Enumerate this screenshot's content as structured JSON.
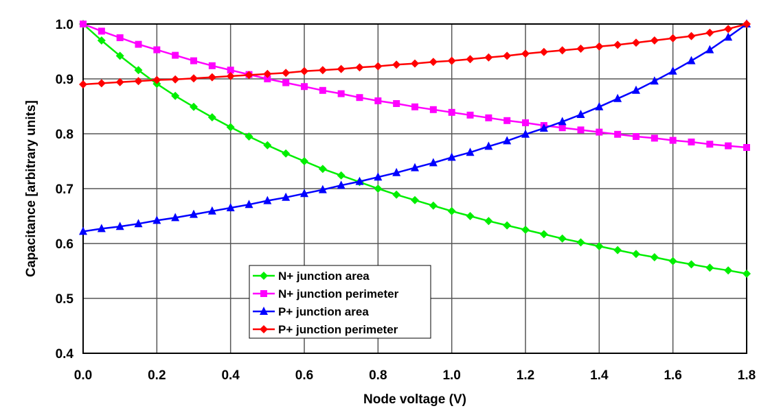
{
  "chart_data": {
    "type": "line",
    "title": "",
    "xlabel": "Node voltage (V)",
    "ylabel": "Capacitance [arbitrary units]",
    "xlim": [
      0,
      1.8
    ],
    "ylim": [
      0.4,
      1.0
    ],
    "xticks": [
      "0.0",
      "0.2",
      "0.4",
      "0.6",
      "0.8",
      "1.0",
      "1.2",
      "1.4",
      "1.6",
      "1.8"
    ],
    "yticks": [
      "0.4",
      "0.5",
      "0.6",
      "0.7",
      "0.8",
      "0.9",
      "1.0"
    ],
    "grid": true,
    "legend_position": "lower-left-center",
    "x": [
      0,
      0.05,
      0.1,
      0.15,
      0.2,
      0.25,
      0.3,
      0.35,
      0.4,
      0.45,
      0.5,
      0.55,
      0.6,
      0.65,
      0.7,
      0.75,
      0.8,
      0.85,
      0.9,
      0.95,
      1.0,
      1.05,
      1.1,
      1.15,
      1.2,
      1.25,
      1.3,
      1.35,
      1.4,
      1.45,
      1.5,
      1.55,
      1.6,
      1.65,
      1.7,
      1.75,
      1.8
    ],
    "series": [
      {
        "name": "N+ junction area",
        "color": "#00ee00",
        "marker": "diamond",
        "values": [
          1.0,
          0.97,
          0.942,
          0.916,
          0.891,
          0.869,
          0.849,
          0.83,
          0.812,
          0.795,
          0.779,
          0.764,
          0.75,
          0.736,
          0.724,
          0.712,
          0.7,
          0.689,
          0.679,
          0.669,
          0.659,
          0.65,
          0.641,
          0.633,
          0.625,
          0.617,
          0.609,
          0.602,
          0.595,
          0.588,
          0.581,
          0.575,
          0.568,
          0.562,
          0.556,
          0.551,
          0.545
        ]
      },
      {
        "name": "N+ junction perimeter",
        "color": "#ff00ff",
        "marker": "square",
        "values": [
          1.0,
          0.987,
          0.975,
          0.963,
          0.953,
          0.943,
          0.933,
          0.924,
          0.916,
          0.908,
          0.9,
          0.893,
          0.886,
          0.879,
          0.873,
          0.866,
          0.86,
          0.855,
          0.849,
          0.844,
          0.839,
          0.834,
          0.829,
          0.824,
          0.82,
          0.815,
          0.811,
          0.807,
          0.803,
          0.799,
          0.795,
          0.792,
          0.788,
          0.785,
          0.781,
          0.778,
          0.775
        ]
      },
      {
        "name": "P+ junction area",
        "color": "#0000ff",
        "marker": "triangle",
        "values": [
          0.622,
          0.627,
          0.631,
          0.636,
          0.642,
          0.647,
          0.653,
          0.659,
          0.665,
          0.671,
          0.678,
          0.684,
          0.691,
          0.698,
          0.706,
          0.713,
          0.721,
          0.729,
          0.738,
          0.747,
          0.757,
          0.766,
          0.777,
          0.787,
          0.799,
          0.81,
          0.822,
          0.835,
          0.849,
          0.864,
          0.879,
          0.896,
          0.914,
          0.933,
          0.953,
          0.976,
          1.0
        ]
      },
      {
        "name": "P+ junction perimeter",
        "color": "#ff0000",
        "marker": "diamond",
        "values": [
          0.89,
          0.892,
          0.894,
          0.896,
          0.898,
          0.899,
          0.901,
          0.903,
          0.905,
          0.907,
          0.909,
          0.911,
          0.914,
          0.916,
          0.918,
          0.921,
          0.923,
          0.926,
          0.928,
          0.931,
          0.933,
          0.936,
          0.939,
          0.942,
          0.946,
          0.949,
          0.952,
          0.955,
          0.959,
          0.962,
          0.966,
          0.97,
          0.974,
          0.978,
          0.984,
          0.991,
          1.0
        ]
      }
    ]
  }
}
